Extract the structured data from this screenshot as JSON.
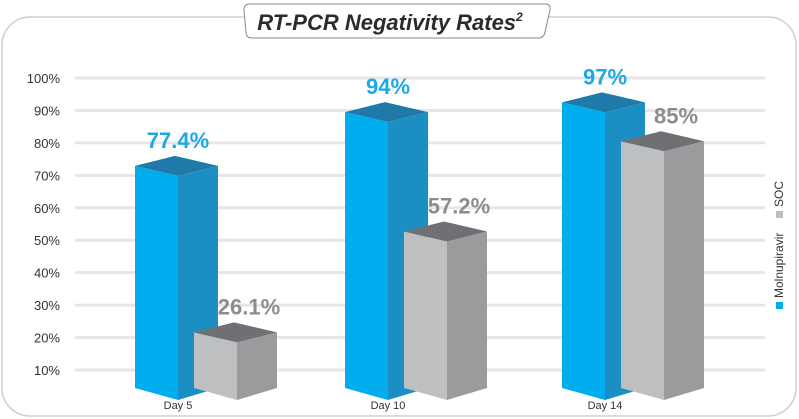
{
  "chart_data": {
    "type": "bar",
    "title": "RT-PCR Negativity Rates",
    "title_superscript": "2",
    "categories": [
      "Day 5",
      "Day 10",
      "Day 14"
    ],
    "series": [
      {
        "name": "Molnupiravir",
        "values": [
          77.4,
          94,
          97
        ],
        "labels": [
          "77.4%",
          "94%",
          "97%"
        ],
        "color": "#00adef",
        "label_color": "#1aa9e6"
      },
      {
        "name": "SOC",
        "values": [
          26.1,
          57.2,
          85
        ],
        "labels": [
          "26.1%",
          "57.2%",
          "85%"
        ],
        "color": "#bebfc1",
        "label_color": "#8c8c8c"
      }
    ],
    "yticks": [
      "10%",
      "20%",
      "30%",
      "40%",
      "50%",
      "60%",
      "70%",
      "80%",
      "90%",
      "100%"
    ],
    "ylim": [
      0,
      100
    ],
    "grid": true,
    "style": "3d",
    "legend_placement": "right (vertical)"
  }
}
